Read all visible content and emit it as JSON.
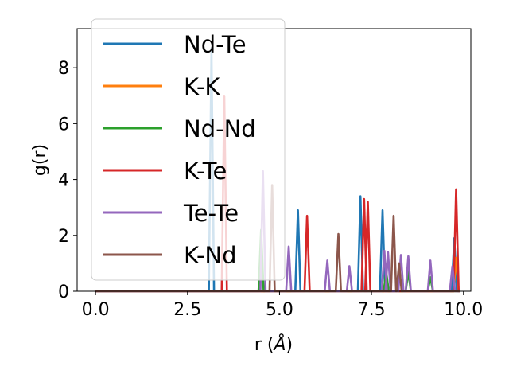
{
  "chart_data": {
    "type": "line",
    "xlabel": "r (",
    "xlabel_unit": "Å",
    "xlabel_close": ")",
    "ylabel": "g(r)",
    "xlim": [
      -0.5,
      10.2
    ],
    "ylim": [
      0,
      9.4
    ],
    "xticks": [
      "0.0",
      "2.5",
      "5.0",
      "7.5",
      "10.0"
    ],
    "xtick_values": [
      0,
      2.5,
      5,
      7.5,
      10
    ],
    "yticks": [
      "0",
      "2",
      "4",
      "6",
      "8"
    ],
    "ytick_values": [
      0,
      2,
      4,
      6,
      8
    ],
    "grid": false,
    "legend_position": "top-left",
    "series": [
      {
        "name": "Nd-Te",
        "color": "#1f77b4",
        "peaks": [
          [
            3.15,
            8.7
          ],
          [
            5.5,
            2.9
          ],
          [
            7.2,
            3.4
          ],
          [
            7.8,
            2.9
          ],
          [
            9.75,
            1.9
          ]
        ]
      },
      {
        "name": "K-K",
        "color": "#ff7f0e",
        "peaks": [
          [
            9.8,
            1.2
          ]
        ]
      },
      {
        "name": "Nd-Nd",
        "color": "#2ca02c",
        "peaks": [
          [
            4.5,
            2.2
          ],
          [
            7.9,
            0.7
          ],
          [
            8.5,
            0.7
          ],
          [
            9.1,
            0.5
          ]
        ]
      },
      {
        "name": "K-Te",
        "color": "#d62728",
        "peaks": [
          [
            3.5,
            7.0
          ],
          [
            5.75,
            2.7
          ],
          [
            7.3,
            3.3
          ],
          [
            7.4,
            3.2
          ],
          [
            9.8,
            3.65
          ]
        ]
      },
      {
        "name": "Te-Te",
        "color": "#9467bd",
        "peaks": [
          [
            4.55,
            4.3
          ],
          [
            5.25,
            1.6
          ],
          [
            6.3,
            1.1
          ],
          [
            6.9,
            0.9
          ],
          [
            7.85,
            1.45
          ],
          [
            7.95,
            1.4
          ],
          [
            8.3,
            1.3
          ],
          [
            8.5,
            1.25
          ],
          [
            9.1,
            1.1
          ],
          [
            9.7,
            0.9
          ]
        ]
      },
      {
        "name": "K-Nd",
        "color": "#8c564b",
        "peaks": [
          [
            4.8,
            3.8
          ],
          [
            6.6,
            2.05
          ],
          [
            8.1,
            2.7
          ],
          [
            8.25,
            1.0
          ]
        ]
      }
    ]
  }
}
